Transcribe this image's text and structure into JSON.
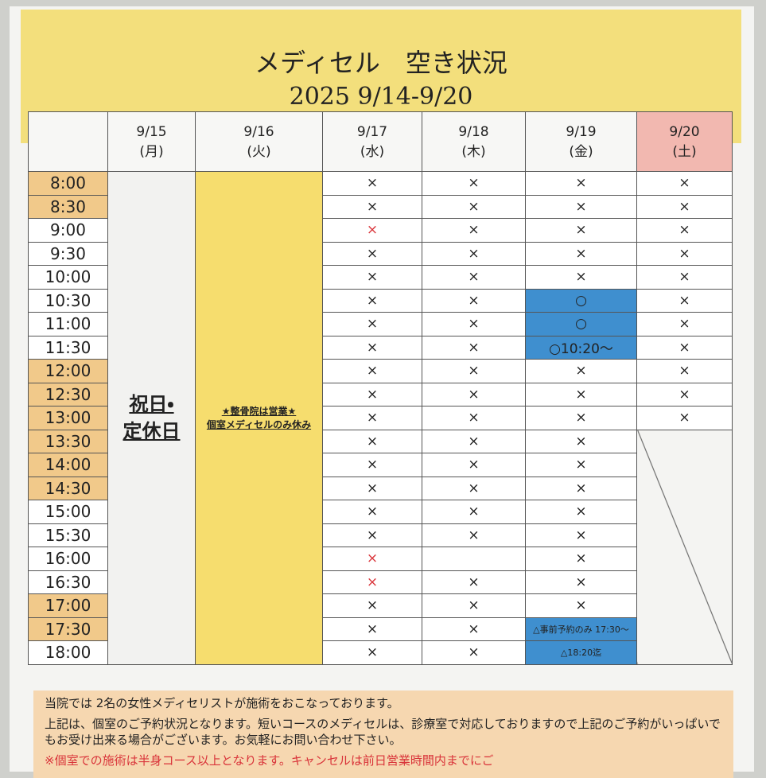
{
  "header": {
    "title": "メディセル　空き状況",
    "subtitle": "2025 9/14-9/20"
  },
  "table": {
    "times": [
      {
        "label": "8:00",
        "highlight": true
      },
      {
        "label": "8:30",
        "highlight": true
      },
      {
        "label": "9:00"
      },
      {
        "label": "9:30"
      },
      {
        "label": "10:00"
      },
      {
        "label": "10:30"
      },
      {
        "label": "11:00"
      },
      {
        "label": "11:30"
      },
      {
        "label": "12:00",
        "highlight": true
      },
      {
        "label": "12:30",
        "highlight": true
      },
      {
        "label": "13:00",
        "highlight": true
      },
      {
        "label": "13:30",
        "highlight": true
      },
      {
        "label": "14:00",
        "highlight": true
      },
      {
        "label": "14:30",
        "highlight": true
      },
      {
        "label": "15:00"
      },
      {
        "label": "15:30"
      },
      {
        "label": "16:00"
      },
      {
        "label": "16:30"
      },
      {
        "label": "17:00",
        "highlight": true
      },
      {
        "label": "17:30",
        "highlight": true
      },
      {
        "label": "18:00"
      }
    ],
    "columns": [
      {
        "date": "9/15",
        "day": "(月)",
        "note": [
          "祝日・",
          "定休日"
        ],
        "note_style": "closed"
      },
      {
        "date": "9/16",
        "day": "(火)",
        "note": [
          "★整骨院は営業★",
          "個室メディセルのみ休み"
        ],
        "note_style": "yellow"
      },
      {
        "date": "9/17",
        "day": "(水)",
        "cells": [
          "×",
          "×",
          {
            "text": "×",
            "color": "#d9343a"
          },
          "×",
          "×",
          "×",
          "×",
          "×",
          "×",
          "×",
          "×",
          "×",
          "×",
          "×",
          "×",
          "×",
          {
            "text": "×",
            "color": "#d9343a"
          },
          {
            "text": "×",
            "color": "#d9343a"
          },
          "×",
          "×",
          "×"
        ]
      },
      {
        "date": "9/18",
        "day": "(木)",
        "cells": [
          "×",
          "×",
          "×",
          "×",
          "×",
          "×",
          "×",
          "×",
          "×",
          "×",
          "×",
          "×",
          "×",
          "×",
          "×",
          "×",
          null,
          "×",
          "×",
          "×",
          "×"
        ]
      },
      {
        "date": "9/19",
        "day": "(金)",
        "cells": [
          "×",
          "×",
          "×",
          "×",
          "×",
          {
            "text": "○",
            "fill": "#3f8fcf"
          },
          {
            "text": "○",
            "fill": "#3f8fcf"
          },
          {
            "text": "○10:20～",
            "fill": "#3f8fcf"
          },
          "×",
          "×",
          "×",
          "×",
          "×",
          "×",
          "×",
          "×",
          "×",
          "×",
          "×",
          {
            "text": "△事前予約のみ 17:30～",
            "fill": "#3f8fcf",
            "small": true
          },
          {
            "text": "△18:20迄",
            "fill": "#3f8fcf",
            "small": true
          }
        ]
      },
      {
        "date": "9/20",
        "day": "(土)",
        "header_fill": "#f2b8b0",
        "cells": [
          "×",
          "×",
          "×",
          "×",
          "×",
          "×",
          "×",
          "×",
          "×",
          "×",
          "×"
        ]
      }
    ]
  },
  "footer": {
    "notes": [
      {
        "text": "当院では 2名の女性メディセリストが施術をおこなっております。"
      },
      {
        "text": "上記は、個室のご予約状況となります。短いコースのメディセルは、診療室で対応しておりますので上記のご予約がいっぱいでもお受け出来る場合がございます。お気軽にお問い合わせ下さい。"
      },
      {
        "text": "※個室での施術は半身コース以上となります。キャンセルは前日営業時間内までにご",
        "color": "#d9343a"
      }
    ]
  }
}
